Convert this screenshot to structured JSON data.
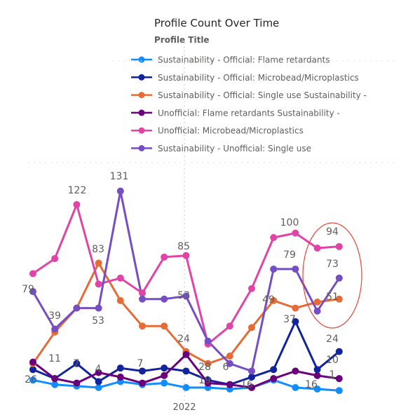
{
  "chart_data": {
    "type": "line",
    "title": "Profile Count Over Time",
    "legend_title": "Profile Title",
    "legend_position": "top",
    "x_tick_labels": [
      "2022"
    ],
    "grid": false,
    "ylim": [
      0,
      140
    ],
    "series": [
      {
        "name": "Sustainability - Official: Flame retardants",
        "color": "#118DFF",
        "values": [
          5,
          2,
          1,
          0,
          4,
          2,
          3,
          0,
          0,
          -1,
          0,
          5,
          0,
          -1,
          -2
        ]
      },
      {
        "name": "Sustainability - Official: Microbead/Microplastics",
        "color": "#12239E",
        "values": [
          12,
          6,
          16,
          4,
          13,
          11,
          13,
          11,
          5,
          2,
          7,
          12,
          44,
          12,
          24
        ]
      },
      {
        "name": "Sustainability - Official: Single use Sustainability -",
        "color": "#E66C37",
        "values": [
          16,
          37,
          53,
          83,
          58,
          41,
          41,
          24,
          16,
          21,
          40,
          58,
          53,
          57,
          59
        ]
      },
      {
        "name": "Unofficial: Flame retardants Sustainability -",
        "color": "#6B007B",
        "values": [
          17,
          6,
          3,
          10,
          7,
          3,
          8,
          22,
          3,
          2,
          0,
          6,
          11,
          8,
          6
        ]
      },
      {
        "name": "Unofficial: Microbead/Microplastics",
        "color": "#E044A7",
        "values": [
          76,
          86,
          122,
          69,
          73,
          63,
          87,
          88,
          29,
          41,
          66,
          100,
          103,
          93,
          94
        ]
      },
      {
        "name": "Sustainability - Unofficial: Single use",
        "color": "#744EC2",
        "values": [
          64,
          39,
          53,
          53,
          131,
          59,
          59,
          61,
          31,
          16,
          11,
          79,
          79,
          51,
          73
        ]
      }
    ],
    "data_labels": [
      "79",
      "39",
      "122",
      "53",
      "83",
      "131",
      "11",
      "7",
      "4",
      "7",
      "85",
      "53",
      "24",
      "28",
      "19",
      "6",
      "16",
      "49",
      "100",
      "79",
      "37",
      "16",
      "94",
      "73",
      "51",
      "24",
      "10",
      "1",
      "26"
    ],
    "annotation": "red ellipse highlighting the last period values"
  }
}
